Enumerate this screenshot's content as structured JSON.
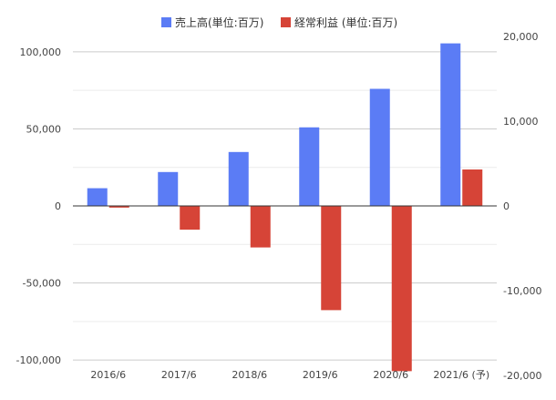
{
  "chart_data": {
    "type": "bar",
    "categories": [
      "2016/6",
      "2017/6",
      "2018/6",
      "2019/6",
      "2020/6",
      "2021/6 (予)"
    ],
    "series": [
      {
        "name": "売上高(単位:百万)",
        "axis": "left",
        "color": "#5b7cf5",
        "values": [
          11500,
          22000,
          35000,
          51000,
          76000,
          105500
        ]
      },
      {
        "name": "経常利益 (単位:百万)",
        "axis": "right",
        "color": "#d64437",
        "values": [
          -200,
          -2800,
          -4900,
          -12300,
          -19500,
          4300
        ]
      }
    ],
    "y_left": {
      "ylim": [
        -110000,
        110000
      ],
      "ticks": [
        -100000,
        -50000,
        0,
        50000,
        100000
      ],
      "tick_labels": [
        "-100,000",
        "-50,000",
        "0",
        "50,000",
        "100,000"
      ]
    },
    "y_right": {
      "ylim": [
        -20000,
        20000
      ],
      "ticks": [
        -20000,
        -10000,
        0,
        10000,
        20000
      ],
      "tick_labels": [
        "-20,000",
        "-10,000",
        "0",
        "10,000",
        "20,000"
      ]
    },
    "grid": true,
    "legend_position": "top-center",
    "title": "",
    "xlabel": "",
    "ylabel": ""
  }
}
